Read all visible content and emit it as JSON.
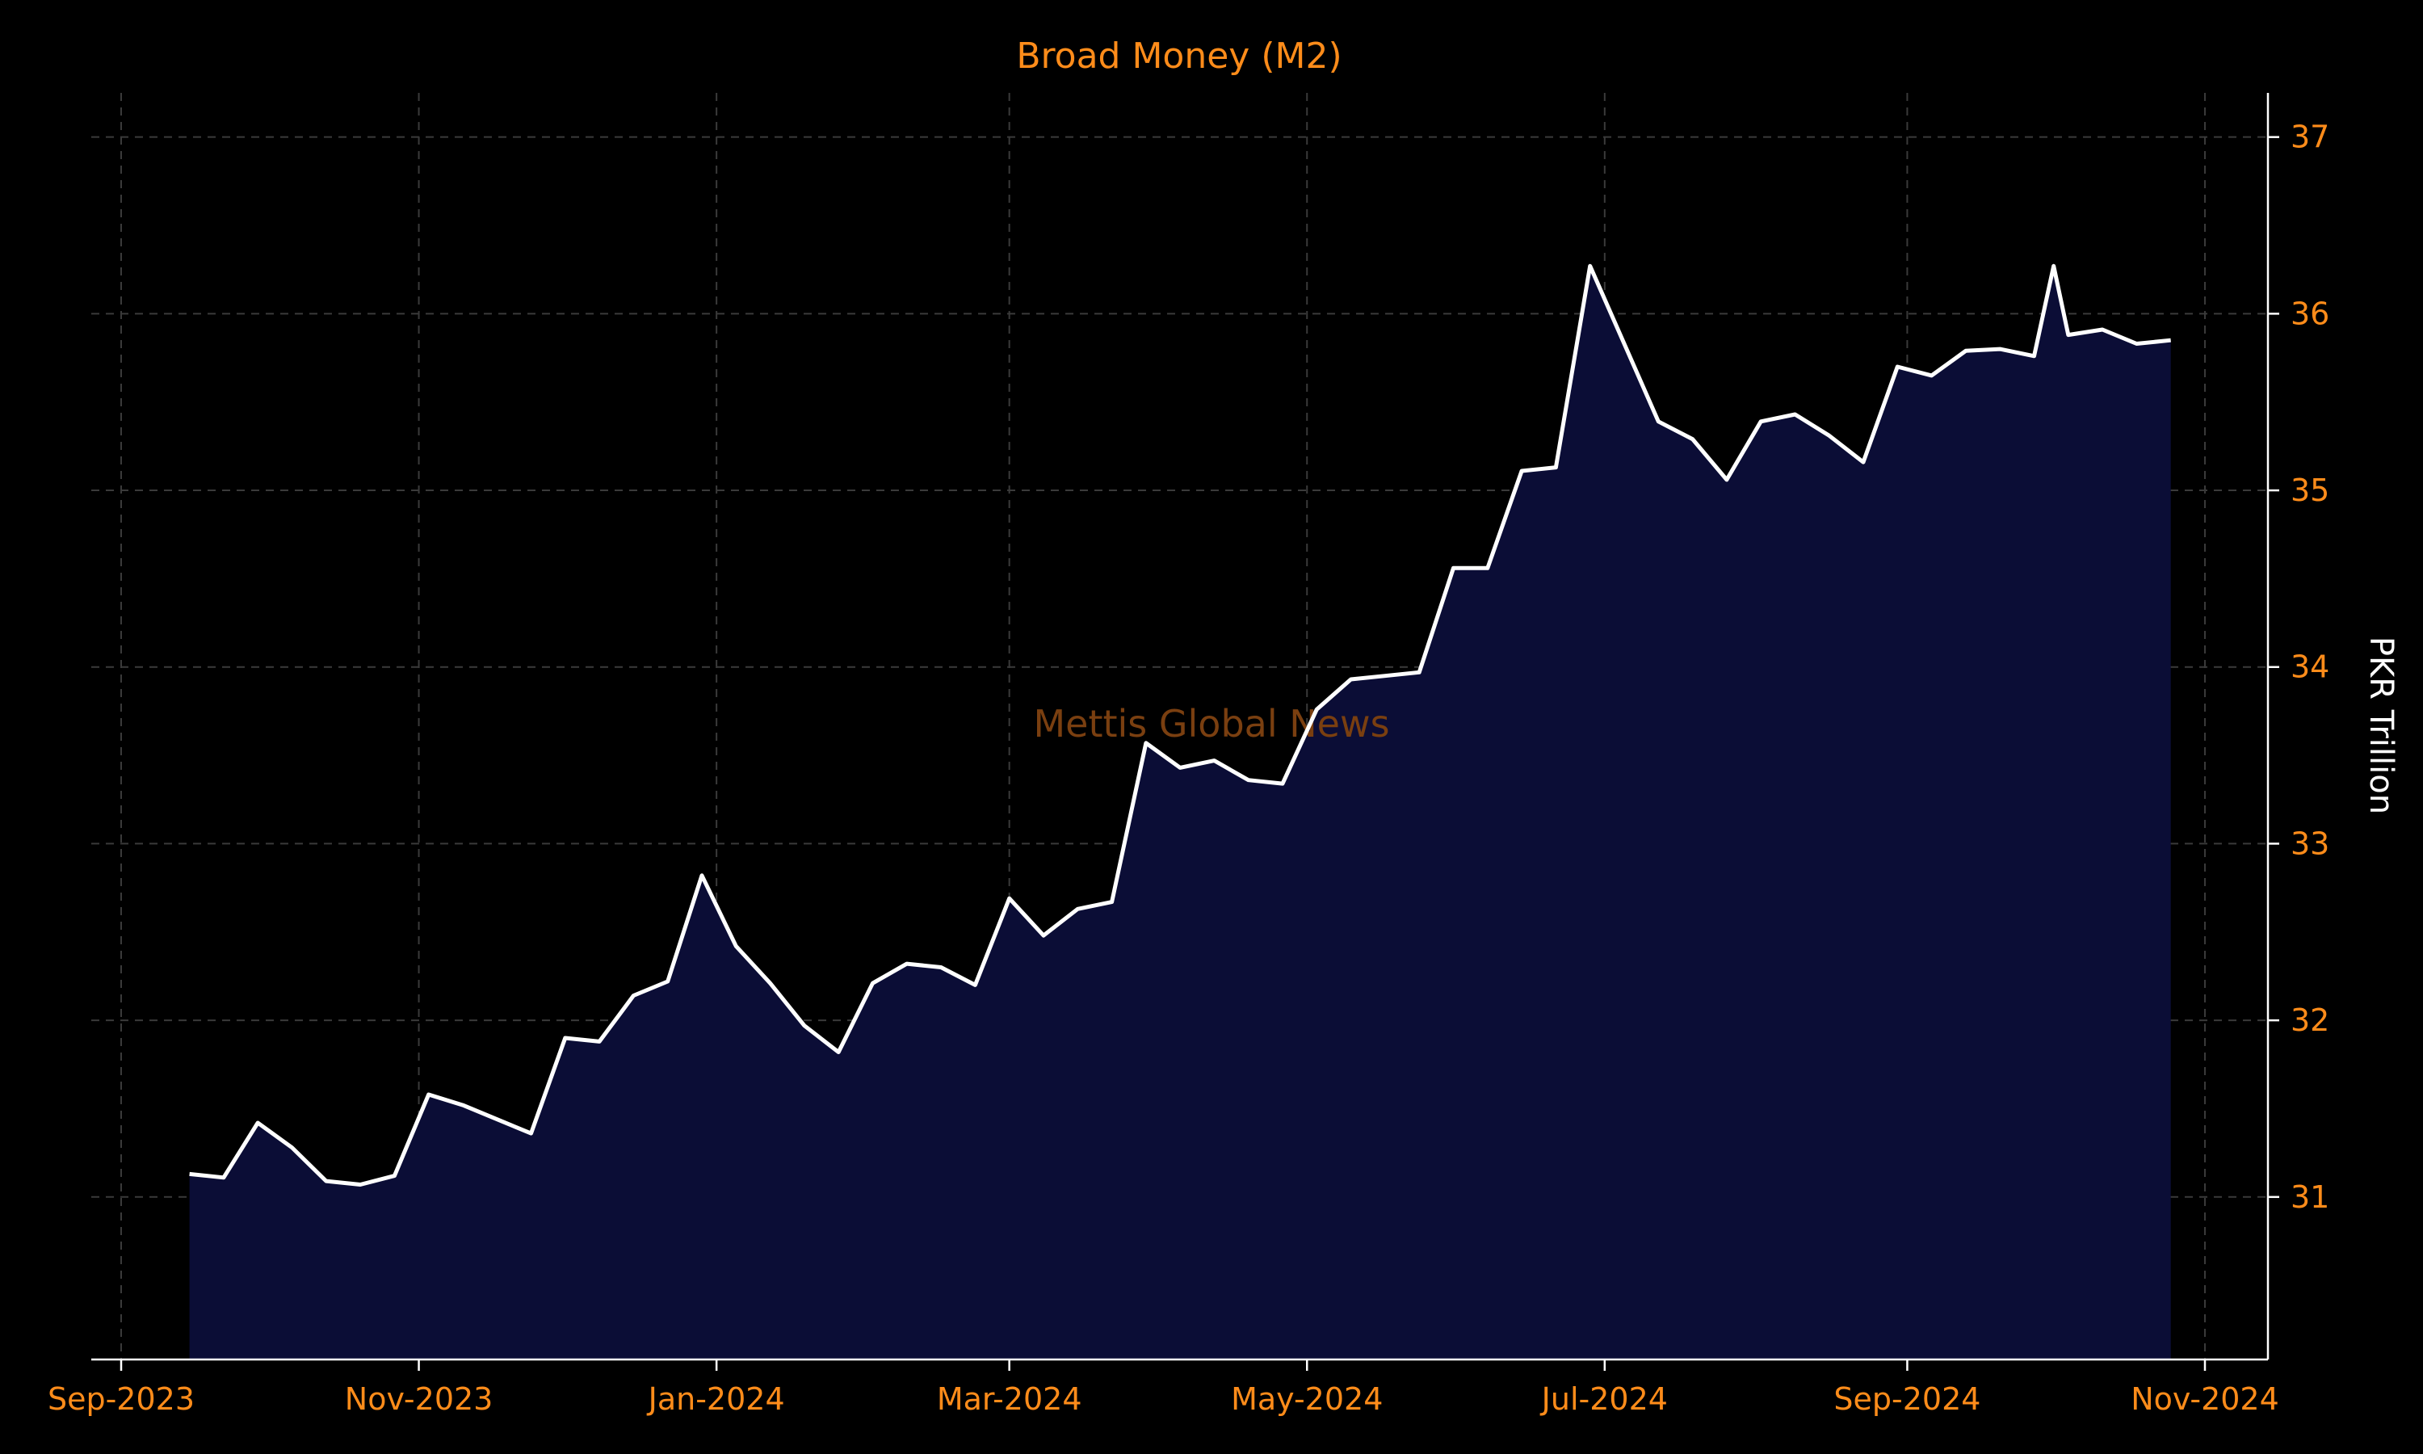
{
  "chart_data": {
    "type": "area",
    "title": "Broad Money (M2)",
    "xlabel": "",
    "ylabel": "PKR Trillion",
    "watermark": "Mettis Global News",
    "y_axis_side": "right",
    "grid": true,
    "ylim": [
      30.08,
      37.25
    ],
    "y_ticks": [
      31,
      32,
      33,
      34,
      35,
      36,
      37
    ],
    "xlim": [
      "2023-09-01",
      "2024-11-01"
    ],
    "x_ticks": [
      {
        "date": "2023-09-01",
        "label": "Sep-2023"
      },
      {
        "date": "2023-11-01",
        "label": "Nov-2023"
      },
      {
        "date": "2024-01-01",
        "label": "Jan-2024"
      },
      {
        "date": "2024-03-01",
        "label": "Mar-2024"
      },
      {
        "date": "2024-05-01",
        "label": "May-2024"
      },
      {
        "date": "2024-07-01",
        "label": "Jul-2024"
      },
      {
        "date": "2024-09-01",
        "label": "Sep-2024"
      },
      {
        "date": "2024-11-01",
        "label": "Nov-2024"
      }
    ],
    "colors": {
      "line": "#ffffff",
      "fill": "#0b0d36",
      "grid": "#3a3a3a",
      "tick_text": "#ff8c1a",
      "title": "#ff8c1a",
      "watermark": "#7a3f10"
    },
    "series": [
      {
        "x": [
          "2023-09-15",
          "2023-09-22",
          "2023-09-29",
          "2023-10-06",
          "2023-10-13",
          "2023-10-20",
          "2023-10-27",
          "2023-11-03",
          "2023-11-10",
          "2023-11-17",
          "2023-11-24",
          "2023-12-01",
          "2023-12-08",
          "2023-12-15",
          "2023-12-22",
          "2023-12-29",
          "2024-01-05",
          "2024-01-12",
          "2024-01-19",
          "2024-01-26",
          "2024-02-02",
          "2024-02-09",
          "2024-02-16",
          "2024-02-23",
          "2024-03-01",
          "2024-03-08",
          "2024-03-15",
          "2024-03-22",
          "2024-03-29",
          "2024-04-05",
          "2024-04-12",
          "2024-04-19",
          "2024-04-26",
          "2024-05-03",
          "2024-05-10",
          "2024-05-17",
          "2024-05-24",
          "2024-05-31",
          "2024-06-07",
          "2024-06-14",
          "2024-06-21",
          "2024-06-28",
          "2024-07-05",
          "2024-07-12",
          "2024-07-19",
          "2024-07-26",
          "2024-08-02",
          "2024-08-09",
          "2024-08-16",
          "2024-08-23",
          "2024-08-30",
          "2024-09-06",
          "2024-09-13",
          "2024-09-20",
          "2024-09-27",
          "2024-10-01",
          "2024-10-04",
          "2024-10-11",
          "2024-10-18",
          "2024-10-25"
        ],
        "values": [
          31.13,
          31.11,
          31.42,
          31.28,
          31.09,
          31.07,
          31.12,
          31.58,
          31.52,
          31.44,
          31.36,
          31.9,
          31.88,
          32.14,
          32.22,
          32.82,
          32.42,
          32.21,
          31.97,
          31.82,
          32.21,
          32.32,
          32.3,
          32.2,
          32.69,
          32.48,
          32.63,
          32.67,
          33.57,
          33.43,
          33.47,
          33.36,
          33.34,
          33.76,
          33.93,
          33.95,
          33.97,
          34.56,
          34.56,
          35.11,
          35.13,
          36.27,
          35.83,
          35.39,
          35.29,
          35.06,
          35.39,
          35.43,
          35.31,
          35.16,
          35.7,
          35.65,
          35.79,
          35.8,
          35.76,
          36.27,
          35.88,
          35.91,
          35.83,
          35.85
        ]
      }
    ]
  }
}
